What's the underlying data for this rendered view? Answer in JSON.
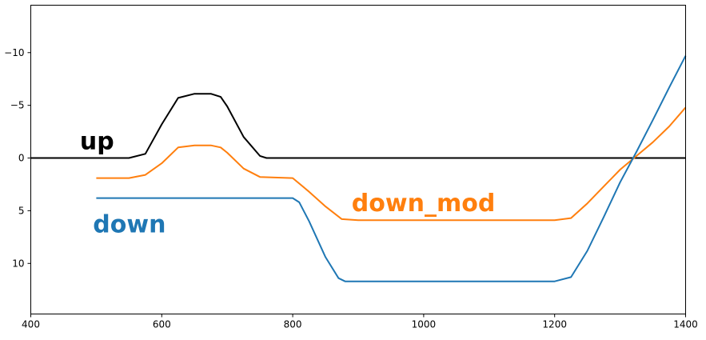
{
  "chart_data": {
    "type": "line",
    "title": "",
    "xlabel": "",
    "ylabel": "",
    "xlim": [
      400,
      1400
    ],
    "ylim": [
      14.8,
      -14.5
    ],
    "y_inverted": true,
    "grid": false,
    "legend": "none",
    "xticks": [
      400,
      600,
      800,
      1000,
      1200,
      1400
    ],
    "xtick_labels": [
      "400",
      "600",
      "800",
      "1000",
      "1200",
      "1400"
    ],
    "yticks": [
      -10,
      -5,
      0,
      5,
      10
    ],
    "ytick_labels": [
      "−10",
      "−5",
      "0",
      "5",
      "10"
    ],
    "series": [
      {
        "name": "up",
        "color": "#000000",
        "points": [
          [
            400,
            0
          ],
          [
            550,
            0
          ],
          [
            575,
            -0.4
          ],
          [
            600,
            -3.2
          ],
          [
            625,
            -5.7
          ],
          [
            650,
            -6.1
          ],
          [
            675,
            -6.1
          ],
          [
            690,
            -5.8
          ],
          [
            700,
            -4.9
          ],
          [
            725,
            -2.0
          ],
          [
            750,
            -0.2
          ],
          [
            760,
            0
          ],
          [
            800,
            0
          ],
          [
            1400,
            0
          ]
        ]
      },
      {
        "name": "down_mod",
        "color": "#ff7f0e",
        "points": [
          [
            500,
            1.9
          ],
          [
            550,
            1.9
          ],
          [
            575,
            1.6
          ],
          [
            600,
            0.5
          ],
          [
            625,
            -1.0
          ],
          [
            650,
            -1.2
          ],
          [
            675,
            -1.2
          ],
          [
            690,
            -1.0
          ],
          [
            700,
            -0.5
          ],
          [
            725,
            1.0
          ],
          [
            750,
            1.8
          ],
          [
            800,
            1.9
          ],
          [
            825,
            3.2
          ],
          [
            850,
            4.6
          ],
          [
            875,
            5.8
          ],
          [
            900,
            5.9
          ],
          [
            1000,
            5.9
          ],
          [
            1100,
            5.9
          ],
          [
            1200,
            5.9
          ],
          [
            1225,
            5.7
          ],
          [
            1250,
            4.3
          ],
          [
            1275,
            2.7
          ],
          [
            1300,
            1.1
          ],
          [
            1325,
            -0.2
          ],
          [
            1350,
            -1.5
          ],
          [
            1375,
            -3.0
          ],
          [
            1400,
            -4.8
          ]
        ]
      },
      {
        "name": "down",
        "color": "#1f77b4",
        "points": [
          [
            500,
            3.8
          ],
          [
            550,
            3.8
          ],
          [
            600,
            3.8
          ],
          [
            650,
            3.8
          ],
          [
            700,
            3.8
          ],
          [
            750,
            3.8
          ],
          [
            800,
            3.8
          ],
          [
            810,
            4.2
          ],
          [
            825,
            6.0
          ],
          [
            850,
            9.4
          ],
          [
            870,
            11.4
          ],
          [
            880,
            11.7
          ],
          [
            900,
            11.7
          ],
          [
            1000,
            11.7
          ],
          [
            1100,
            11.7
          ],
          [
            1200,
            11.7
          ],
          [
            1225,
            11.3
          ],
          [
            1250,
            8.8
          ],
          [
            1275,
            5.6
          ],
          [
            1300,
            2.3
          ],
          [
            1325,
            -0.6
          ],
          [
            1350,
            -3.6
          ],
          [
            1375,
            -6.7
          ],
          [
            1400,
            -9.7
          ]
        ]
      }
    ],
    "annotations": [
      {
        "text": "up",
        "color": "#000000",
        "x": 475,
        "y": -1.5
      },
      {
        "text": "down_mod",
        "color": "#ff7f0e",
        "x": 890,
        "y": 4.4
      },
      {
        "text": "down",
        "color": "#1f77b4",
        "x": 495,
        "y": 6.4
      }
    ]
  }
}
